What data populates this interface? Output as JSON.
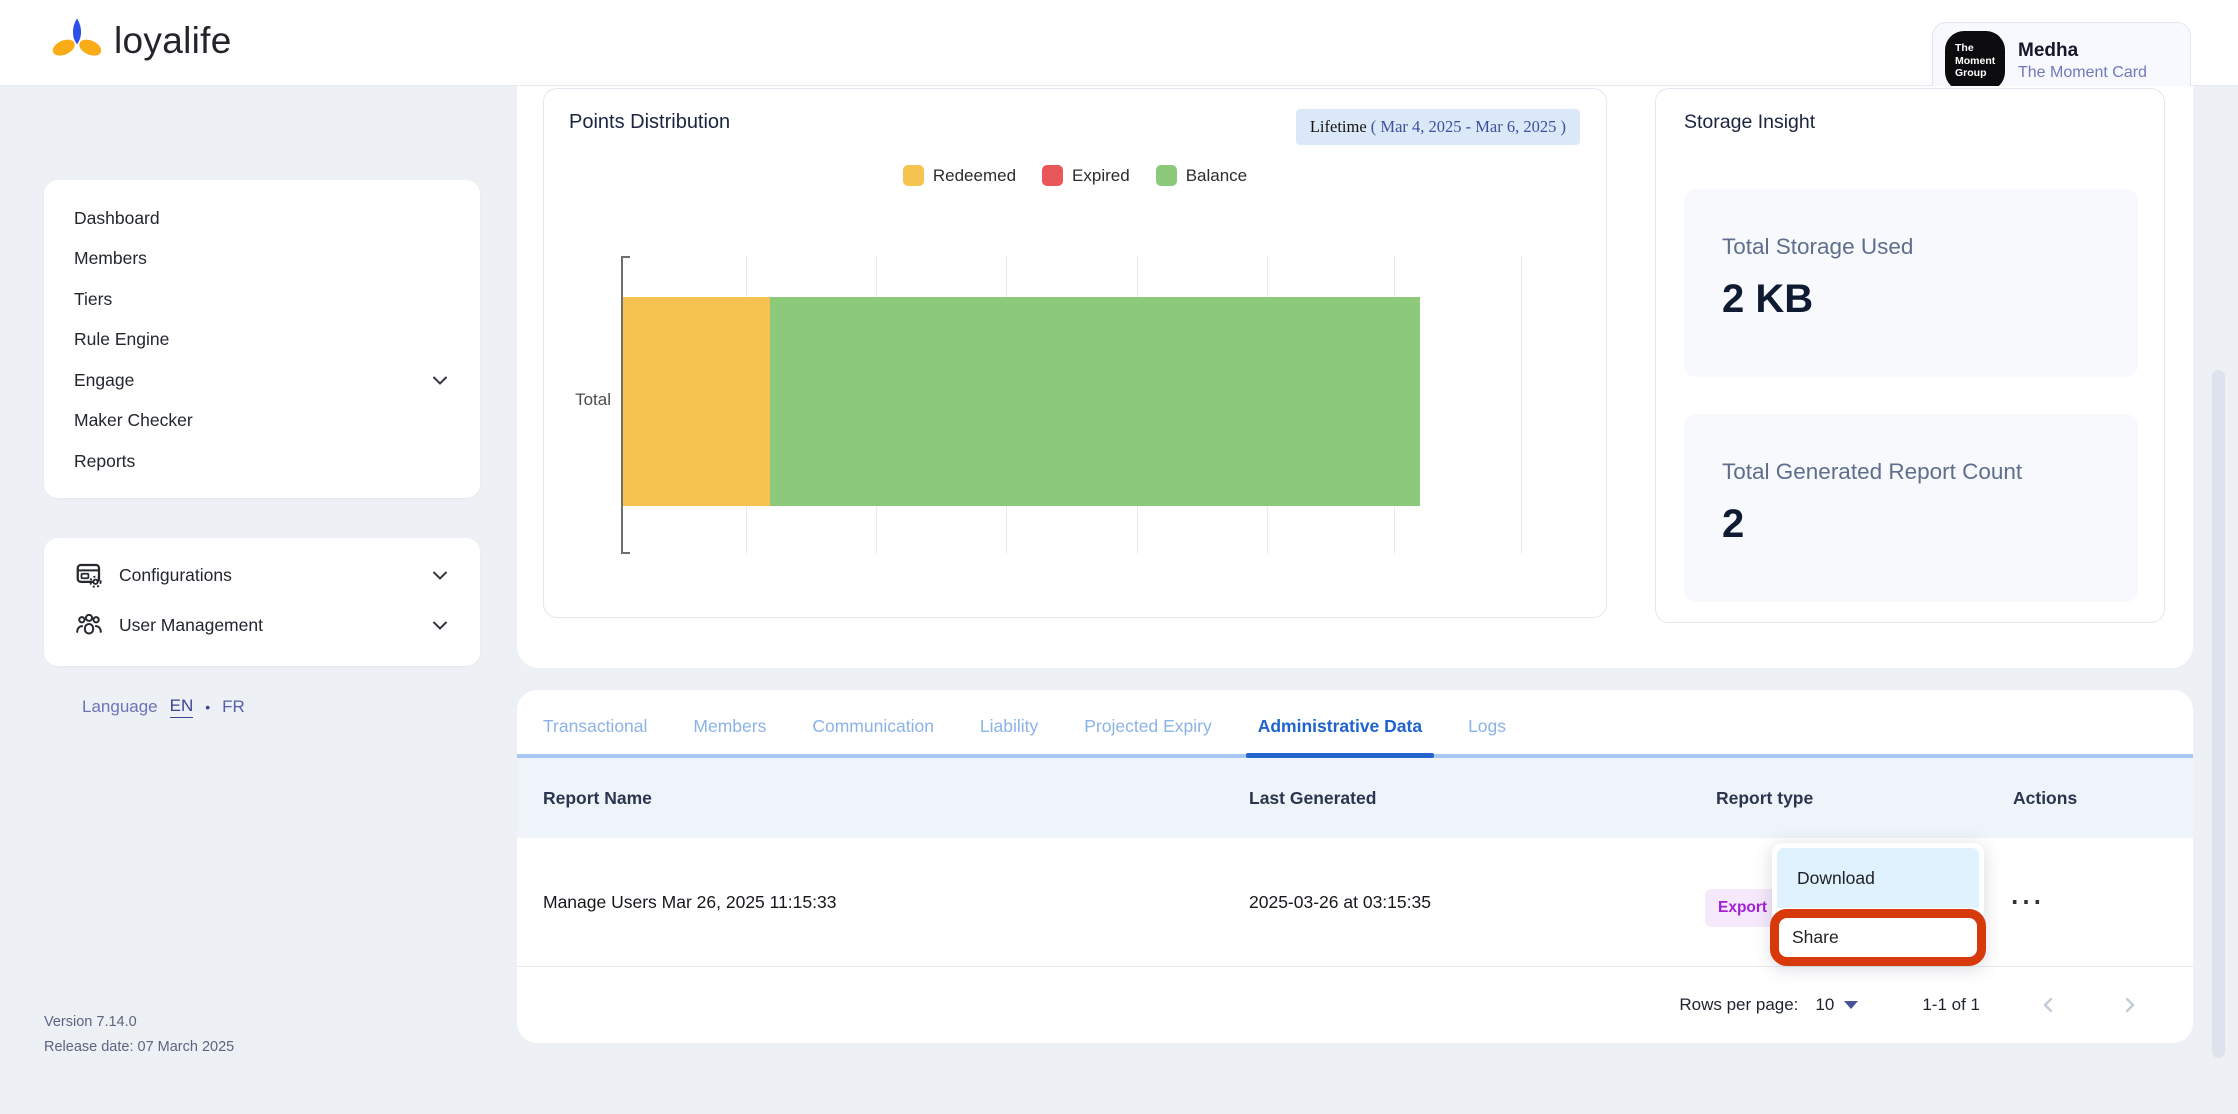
{
  "brand": {
    "logo_text": "loyalife"
  },
  "topbar": {
    "tenant": {
      "logo_lines": [
        "The",
        "Moment",
        "Group"
      ],
      "name": "Medha",
      "product": "The Moment Card"
    }
  },
  "sidebar": {
    "items": [
      {
        "label": "Dashboard"
      },
      {
        "label": "Members"
      },
      {
        "label": "Tiers"
      },
      {
        "label": "Rule Engine"
      },
      {
        "label": "Engage"
      },
      {
        "label": "Maker Checker"
      },
      {
        "label": "Reports"
      }
    ],
    "groups": [
      {
        "label": "Configurations"
      },
      {
        "label": "User Management"
      }
    ],
    "language": {
      "label": "Language",
      "selected": "EN",
      "separator": "•",
      "other": "FR"
    },
    "version": "Version 7.14.0",
    "release": "Release date: 07 March 2025"
  },
  "chart_panel": {
    "title": "Points Distribution",
    "period_badge": {
      "prefix": "Lifetime",
      "range": "( Mar 4, 2025 - Mar 6, 2025 )"
    }
  },
  "chart_data": {
    "type": "bar",
    "orientation": "horizontal",
    "stacked": true,
    "title": "Points Distribution",
    "categories": [
      "Total"
    ],
    "series": [
      {
        "name": "Redeemed",
        "color": "#F6C350",
        "values": [
          16.3
        ]
      },
      {
        "name": "Expired",
        "color": "#E8575A",
        "values": [
          0
        ]
      },
      {
        "name": "Balance",
        "color": "#8CC97A",
        "values": [
          72.3
        ]
      }
    ],
    "xlabel": "",
    "ylabel": "",
    "xlim": [
      0,
      100
    ],
    "grid": true,
    "legend_position": "top"
  },
  "storage_panel": {
    "title": "Storage Insight",
    "cards": [
      {
        "label": "Total Storage Used",
        "value": "2 KB"
      },
      {
        "label": "Total Generated Report Count",
        "value": "2"
      }
    ]
  },
  "tabs": [
    {
      "label": "Transactional",
      "active": false
    },
    {
      "label": "Members",
      "active": false
    },
    {
      "label": "Communication",
      "active": false
    },
    {
      "label": "Liability",
      "active": false
    },
    {
      "label": "Projected Expiry",
      "active": false
    },
    {
      "label": "Administrative Data",
      "active": true
    },
    {
      "label": "Logs",
      "active": false
    }
  ],
  "table": {
    "columns": [
      "Report Name",
      "Last Generated",
      "Report type",
      "Actions"
    ],
    "rows": [
      {
        "report_name": "Manage Users Mar 26, 2025 11:15:33",
        "last_generated": "2025-03-26 at 03:15:35",
        "report_type": "Export",
        "actions": "⋯"
      }
    ]
  },
  "context_menu": {
    "items": [
      {
        "label": "Download",
        "hovered": true
      },
      {
        "label": "Share",
        "highlighted": true
      }
    ],
    "highlight_color": "#d8390a"
  },
  "pagination": {
    "rows_per_page_label": "Rows per page:",
    "rows_per_page": "10",
    "range_label": "1-1 of 1"
  }
}
